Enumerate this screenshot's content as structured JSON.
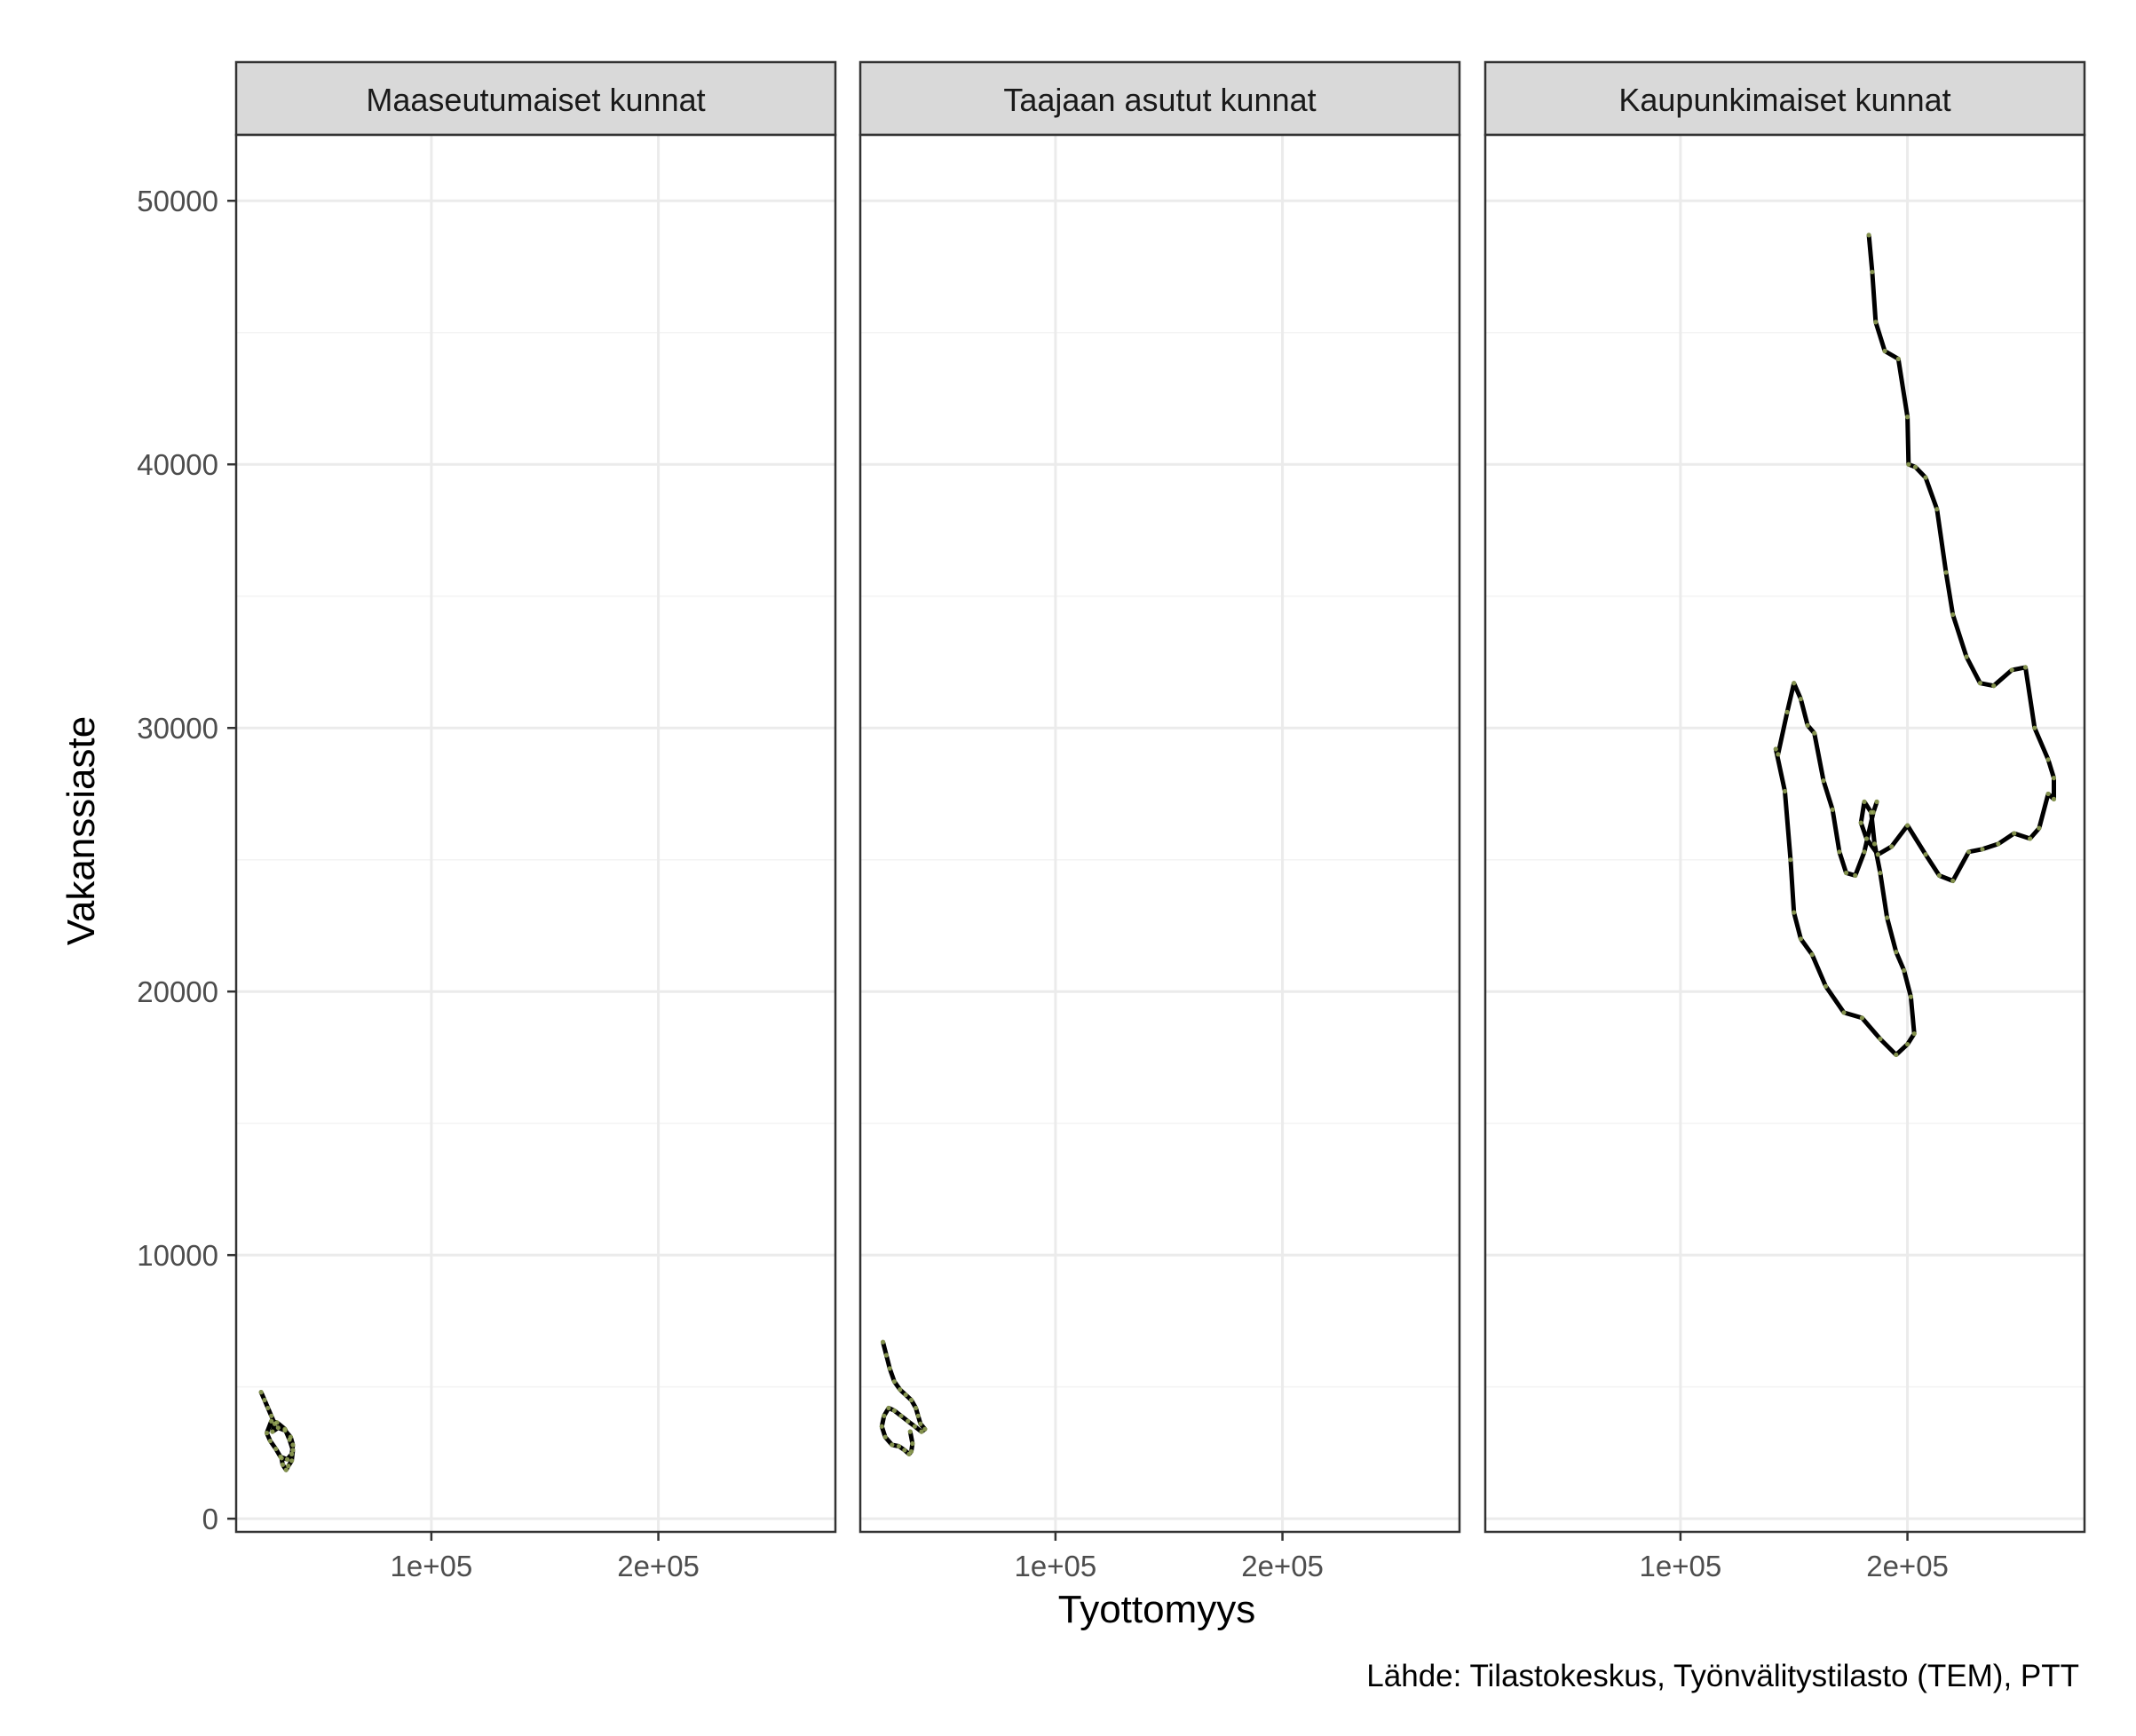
{
  "chart_data": {
    "type": "line",
    "xlabel": "Tyottomyys",
    "ylabel": "Vakanssiaste",
    "caption": "Lähde: Tilastokeskus, Työnvälitystilasto (TEM), PTT",
    "xlim": [
      14000,
      278000
    ],
    "ylim": [
      -500,
      52500
    ],
    "x_ticks": [
      {
        "value": 100000,
        "label": "1e+05"
      },
      {
        "value": 200000,
        "label": "2e+05"
      }
    ],
    "y_ticks": [
      {
        "value": 0,
        "label": "0"
      },
      {
        "value": 10000,
        "label": "10000"
      },
      {
        "value": 20000,
        "label": "20000"
      },
      {
        "value": 30000,
        "label": "30000"
      },
      {
        "value": 40000,
        "label": "40000"
      },
      {
        "value": 50000,
        "label": "50000"
      }
    ],
    "grid": true,
    "line_color": "#000000",
    "point_color": "#9aaa5a",
    "panels": [
      {
        "title": "Maaseutumaiset kunnat",
        "x": [
          25000,
          26500,
          28000,
          29500,
          31000,
          30000,
          32500,
          35500,
          38000,
          39000,
          38500,
          36500,
          33500,
          31500,
          29000,
          27500,
          29500,
          32000,
          35500,
          37500,
          39000,
          38500,
          37000,
          36000,
          34500,
          34000
        ],
        "y": [
          4800,
          4500,
          4200,
          3900,
          3600,
          3300,
          3450,
          3350,
          3100,
          2800,
          2450,
          2250,
          2350,
          2650,
          2950,
          3250,
          3700,
          3650,
          3400,
          3000,
          2600,
          2200,
          2000,
          1850,
          2050,
          2300
        ]
      },
      {
        "title": "Taajaan asutut kunnat",
        "x": [
          24000,
          25500,
          27000,
          29000,
          31500,
          34000,
          36500,
          38500,
          39500,
          40500,
          42500,
          41000,
          38000,
          35000,
          32000,
          29000,
          26500,
          24500,
          23500,
          25000,
          28000,
          31000,
          33500,
          35500,
          36500,
          37000,
          36000
        ],
        "y": [
          6700,
          6200,
          5700,
          5200,
          4900,
          4700,
          4500,
          4200,
          3900,
          3600,
          3400,
          3300,
          3500,
          3700,
          3900,
          4100,
          4200,
          3900,
          3500,
          3100,
          2800,
          2750,
          2600,
          2450,
          2550,
          2850,
          3300
        ]
      },
      {
        "title": "Kaupunkimaiset kunnat",
        "x": [
          183000,
          184500,
          186000,
          190000,
          196000,
          200000,
          200500,
          203500,
          208000,
          213000,
          217000,
          220000,
          226000,
          232000,
          238000,
          246000,
          252000,
          256000,
          262000,
          264500,
          264500,
          262000,
          258000,
          254000,
          247000,
          240000,
          233000,
          227000,
          220000,
          214000,
          208000,
          200000,
          193000,
          187000,
          182000,
          179500,
          181000,
          184000,
          185500,
          188000,
          191000,
          195000,
          198500,
          201500,
          203000,
          200000,
          195000,
          188000,
          180000,
          172000,
          164000,
          158000,
          153000,
          150000,
          148500,
          146000,
          142000,
          143000,
          147000,
          150000,
          153000,
          156000,
          159000,
          163000,
          167000,
          170000,
          173000,
          177000,
          181000,
          185000,
          186500
        ],
        "y": [
          48700,
          47300,
          45400,
          44300,
          44000,
          41800,
          40000,
          39900,
          39500,
          38300,
          35900,
          34300,
          32700,
          31700,
          31600,
          32200,
          32300,
          30000,
          28800,
          28100,
          27300,
          27500,
          26200,
          25800,
          26000,
          25600,
          25400,
          25300,
          24200,
          24400,
          25200,
          26300,
          25500,
          25200,
          25800,
          26400,
          27200,
          26800,
          25600,
          24500,
          22800,
          21500,
          20800,
          19800,
          18400,
          18000,
          17600,
          18200,
          19000,
          19200,
          20200,
          21400,
          22000,
          23000,
          25000,
          27600,
          29200,
          29000,
          30600,
          31700,
          31100,
          30100,
          29800,
          28000,
          26900,
          25300,
          24500,
          24400,
          25300,
          26800,
          27200
        ]
      }
    ]
  }
}
